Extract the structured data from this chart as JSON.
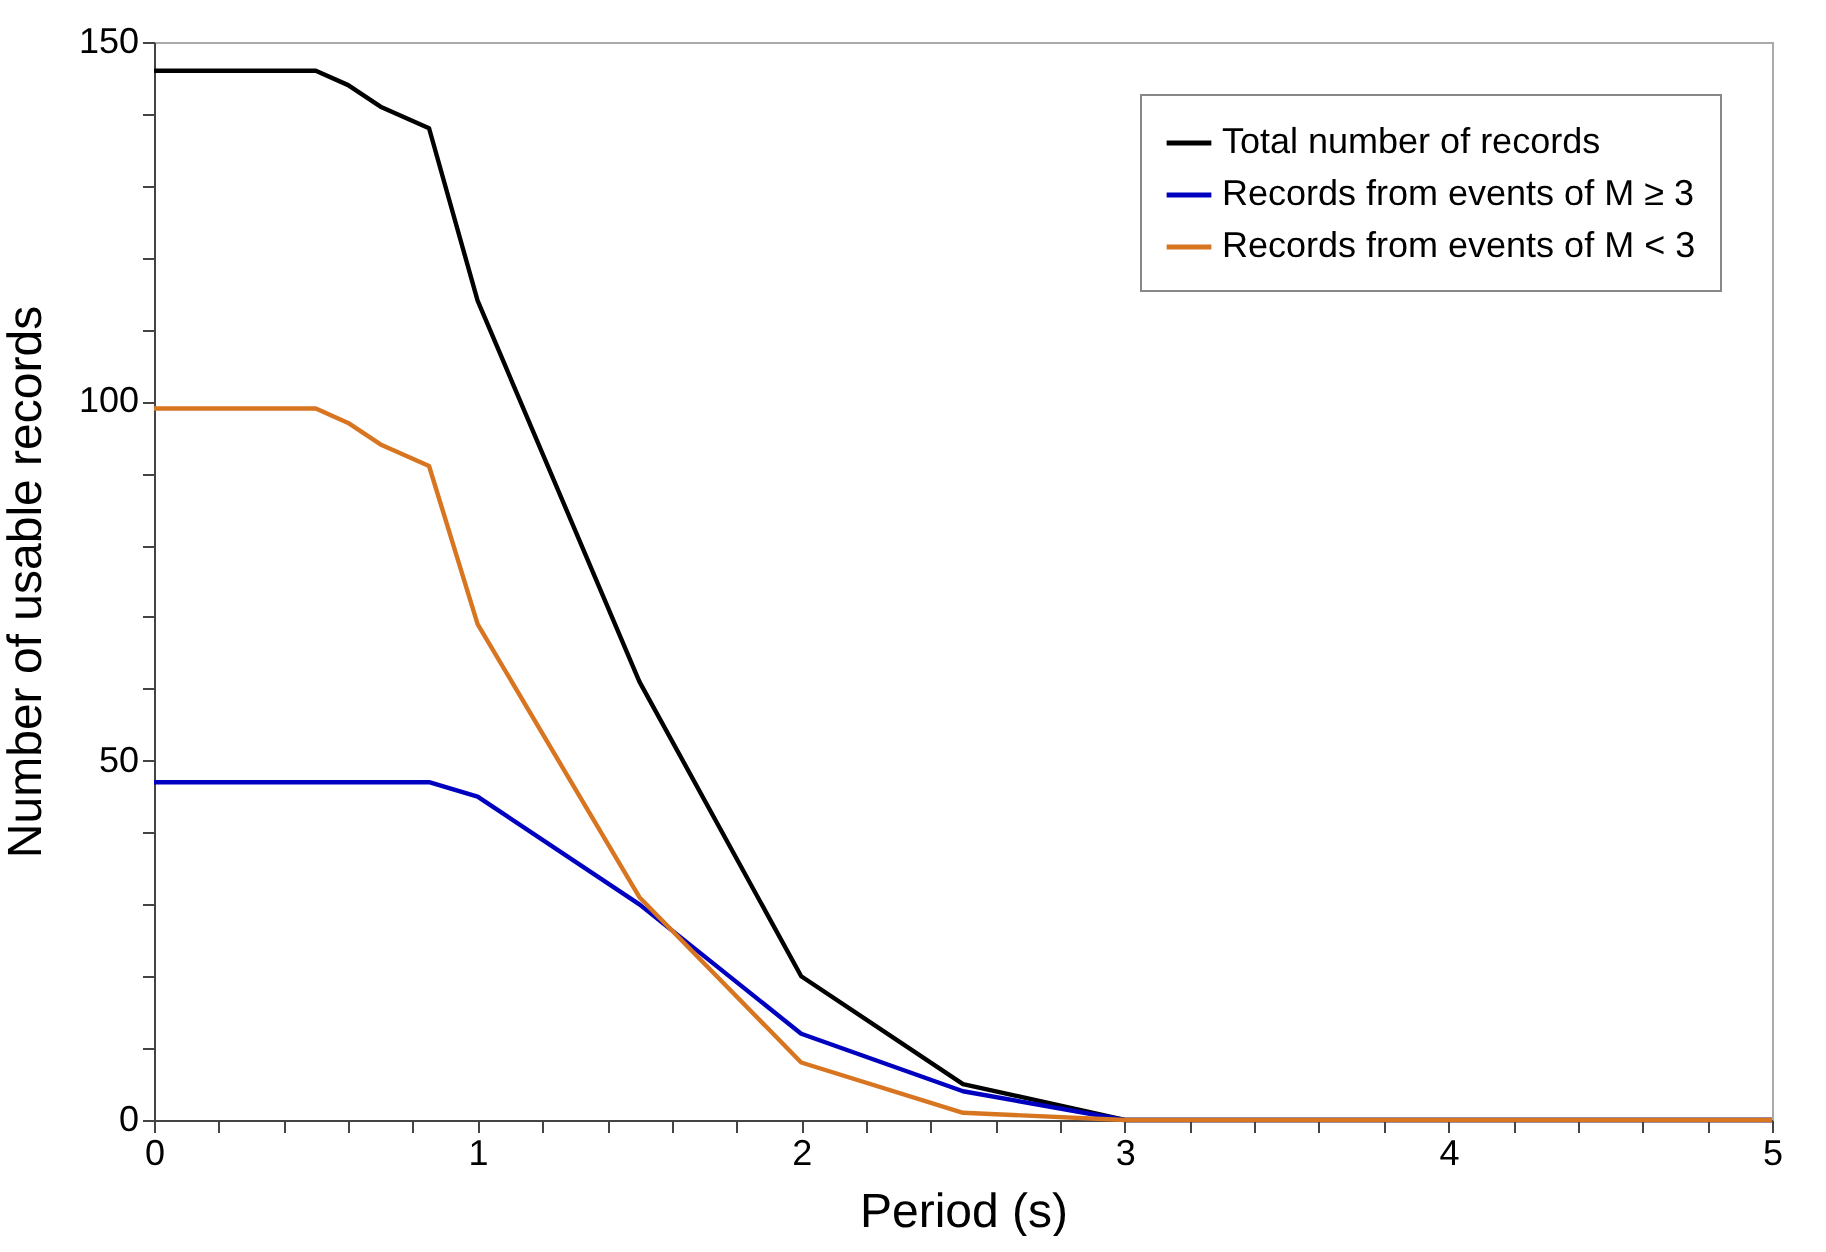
{
  "chart_data": {
    "type": "line",
    "xlabel": "Period (s)",
    "ylabel": "Number of usable records",
    "series": [
      {
        "name": "Total number of records",
        "color": "#000000",
        "x": [
          0,
          0.5,
          0.6,
          0.7,
          0.85,
          1,
          1.5,
          2,
          2.5,
          3,
          5
        ],
        "values": [
          146,
          146,
          144,
          141,
          138,
          114,
          61,
          20,
          5,
          0,
          0
        ]
      },
      {
        "name": "Records from events of M ≥ 3",
        "color": "#0000c0",
        "x": [
          0,
          0.85,
          1,
          1.5,
          2,
          2.5,
          3,
          5
        ],
        "values": [
          47,
          47,
          45,
          30,
          12,
          4,
          0,
          0
        ]
      },
      {
        "name": "Records from events of M < 3",
        "color": "#d87520",
        "x": [
          0,
          0.5,
          0.6,
          0.7,
          0.85,
          1,
          1.5,
          2,
          2.5,
          3,
          5
        ],
        "values": [
          99,
          99,
          97,
          94,
          91,
          69,
          31,
          8,
          1,
          0,
          0
        ]
      }
    ],
    "xlim": [
      0,
      5
    ],
    "xticks": [
      0,
      {
        "value": 0.2,
        "label": null
      },
      {
        "value": 0.4,
        "label": null
      },
      {
        "value": 0.6,
        "label": null
      },
      {
        "value": 0.8,
        "label": null
      },
      1,
      {
        "value": 1.2,
        "label": null
      },
      {
        "value": 1.4,
        "label": null
      },
      {
        "value": 1.6,
        "label": null
      },
      {
        "value": 1.8,
        "label": null
      },
      2,
      {
        "value": 2.2,
        "label": null
      },
      {
        "value": 2.4,
        "label": null
      },
      {
        "value": 2.6,
        "label": null
      },
      {
        "value": 2.8,
        "label": null
      },
      3,
      {
        "value": 3.2,
        "label": null
      },
      {
        "value": 3.4,
        "label": null
      },
      {
        "value": 3.6,
        "label": null
      },
      {
        "value": 3.8,
        "label": null
      },
      4,
      {
        "value": 4.2,
        "label": null
      },
      {
        "value": 4.4,
        "label": null
      },
      {
        "value": 4.6,
        "label": null
      },
      {
        "value": 4.8,
        "label": null
      },
      5
    ],
    "ylim": [
      0,
      150
    ],
    "yticks": [
      0,
      {
        "value": 10,
        "label": null
      },
      {
        "value": 20,
        "label": null
      },
      {
        "value": 30,
        "label": null
      },
      {
        "value": 40,
        "label": null
      },
      50,
      {
        "value": 60,
        "label": null
      },
      {
        "value": 70,
        "label": null
      },
      {
        "value": 80,
        "label": null
      },
      {
        "value": 90,
        "label": null
      },
      100,
      {
        "value": 110,
        "label": null
      },
      {
        "value": 120,
        "label": null
      },
      {
        "value": 130,
        "label": null
      },
      {
        "value": 140,
        "label": null
      },
      150
    ],
    "grid": false,
    "legend": "top right",
    "line_style": "solid",
    "marker": "none"
  }
}
